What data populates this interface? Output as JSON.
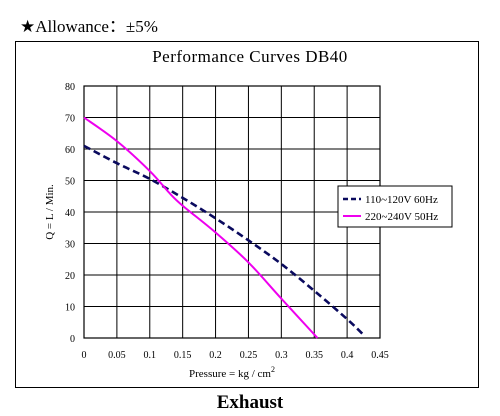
{
  "header": {
    "allowance": "★Allowance：±5%"
  },
  "footer": {
    "label": "Exhaust"
  },
  "chart_data": {
    "type": "line",
    "title": "Performance Curves DB40",
    "xlabel": "Pressure = kg / cm²",
    "xlabel_base": "Pressure = kg / cm",
    "xlabel_sup": "2",
    "ylabel": "Q = L / Min.",
    "xlim": [
      0,
      0.45
    ],
    "ylim": [
      0,
      80
    ],
    "x_ticks": [
      0,
      0.05,
      0.1,
      0.15,
      0.2,
      0.25,
      0.3,
      0.35,
      0.4,
      0.45
    ],
    "x_tick_labels": [
      "0",
      "0.05",
      "0.1",
      "0.15",
      "0.2",
      "0.25",
      "0.3",
      "0.35",
      "0.4",
      "0.45"
    ],
    "y_ticks": [
      0,
      10,
      20,
      30,
      40,
      50,
      60,
      70,
      80
    ],
    "y_tick_labels": [
      "0",
      "10",
      "20",
      "30",
      "40",
      "50",
      "60",
      "70",
      "80"
    ],
    "grid": true,
    "legend_position": "right",
    "series": [
      {
        "name": "110~120V 60Hz",
        "color": "#0a0a5e",
        "dash": true,
        "points": [
          [
            0,
            61
          ],
          [
            0.05,
            55.5
          ],
          [
            0.1,
            50.5
          ],
          [
            0.15,
            44.5
          ],
          [
            0.2,
            38
          ],
          [
            0.25,
            31
          ],
          [
            0.3,
            23.5
          ],
          [
            0.35,
            15
          ],
          [
            0.4,
            6
          ],
          [
            0.425,
            1
          ]
        ]
      },
      {
        "name": "220~240V 50Hz",
        "color": "#ee00ee",
        "dash": false,
        "points": [
          [
            0,
            70
          ],
          [
            0.05,
            62.5
          ],
          [
            0.1,
            53
          ],
          [
            0.13,
            46
          ],
          [
            0.15,
            42
          ],
          [
            0.2,
            33.5
          ],
          [
            0.25,
            24
          ],
          [
            0.3,
            12.5
          ],
          [
            0.355,
            0
          ]
        ]
      }
    ]
  }
}
